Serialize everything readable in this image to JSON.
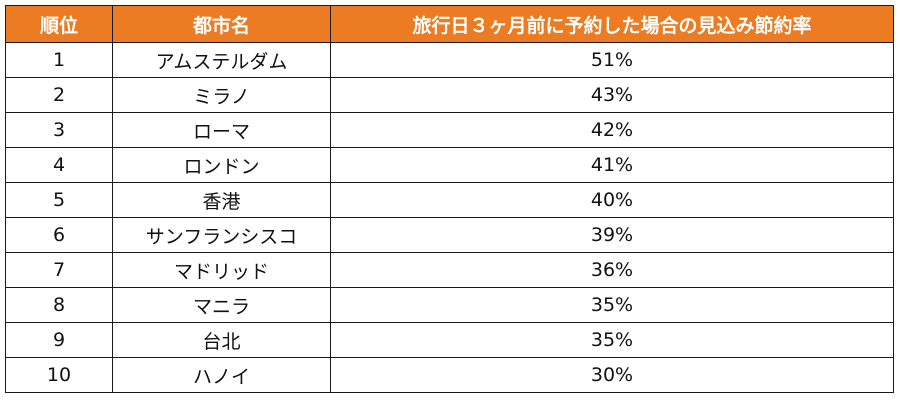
{
  "header": {
    "rank": "順位",
    "city": "都市名",
    "rate": "旅行日３ヶ月前に予約した場合の見込み節約率"
  },
  "rows": [
    {
      "rank": "1",
      "city": "アムステルダム",
      "rate": "51%"
    },
    {
      "rank": "2",
      "city": "ミラノ",
      "rate": "43%"
    },
    {
      "rank": "3",
      "city": "ローマ",
      "rate": "42%"
    },
    {
      "rank": "4",
      "city": "ロンドン",
      "rate": "41%"
    },
    {
      "rank": "5",
      "city": "香港",
      "rate": "40%"
    },
    {
      "rank": "6",
      "city": "サンフランシスコ",
      "rate": "39%"
    },
    {
      "rank": "7",
      "city": "マドリッド",
      "rate": "36%"
    },
    {
      "rank": "8",
      "city": "マニラ",
      "rate": "35%"
    },
    {
      "rank": "9",
      "city": "台北",
      "rate": "35%"
    },
    {
      "rank": "10",
      "city": "ハノイ",
      "rate": "30%"
    }
  ],
  "colors": {
    "header_bg": "#ec7c23",
    "header_text": "#ffffff",
    "border": "#1a1a1a"
  }
}
